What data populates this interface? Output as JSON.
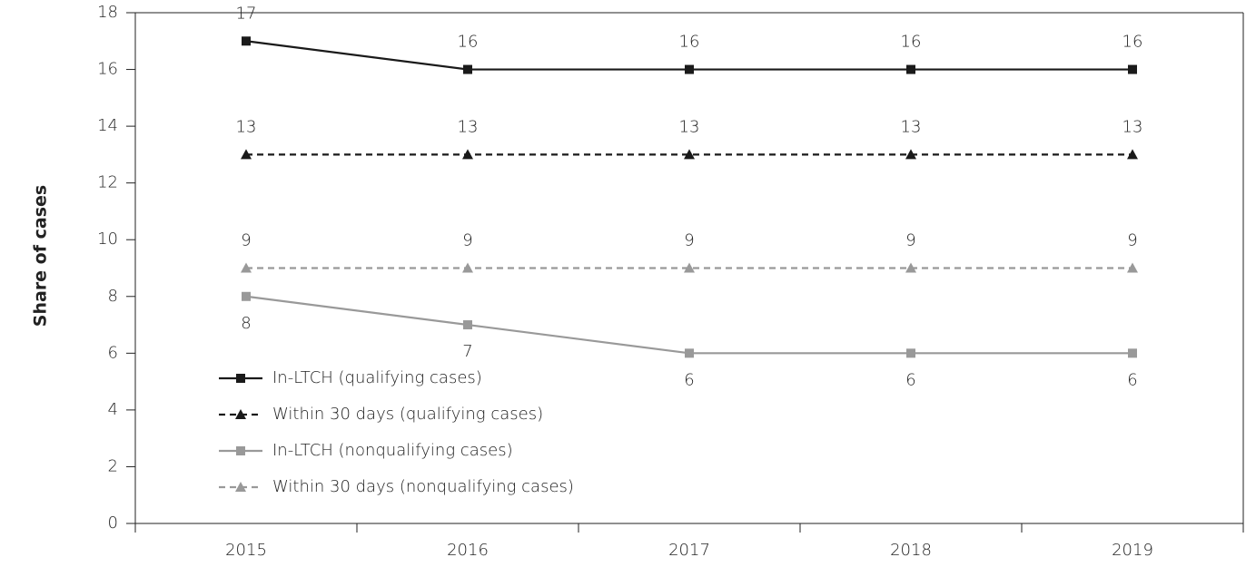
{
  "chart_data": {
    "type": "line",
    "y_label": "Share of cases",
    "categories": [
      "2015",
      "2016",
      "2017",
      "2018",
      "2019"
    ],
    "series": [
      {
        "name": "In-LTCH (qualifying cases)",
        "color": "#1a1a1a",
        "dash": "solid",
        "marker": "square",
        "label_position": "above",
        "values": [
          17,
          16,
          16,
          16,
          16
        ]
      },
      {
        "name": "Within 30 days (qualifying cases)",
        "color": "#1a1a1a",
        "dash": "dashed",
        "marker": "triangle",
        "label_position": "above",
        "values": [
          13,
          13,
          13,
          13,
          13
        ]
      },
      {
        "name": "In-LTCH (nonqualifying cases)",
        "color": "#999999",
        "dash": "solid",
        "marker": "square",
        "label_position": "below",
        "values": [
          8,
          7,
          6,
          6,
          6
        ]
      },
      {
        "name": "Within 30 days (nonqualifying cases)",
        "color": "#999999",
        "dash": "dashed",
        "marker": "triangle",
        "label_position": "above",
        "values": [
          9,
          9,
          9,
          9,
          9
        ]
      }
    ],
    "ylim": [
      0,
      18
    ],
    "yticks": [
      0,
      2,
      4,
      6,
      8,
      10,
      12,
      14,
      16,
      18
    ],
    "grid": false,
    "legend": "lower left"
  }
}
